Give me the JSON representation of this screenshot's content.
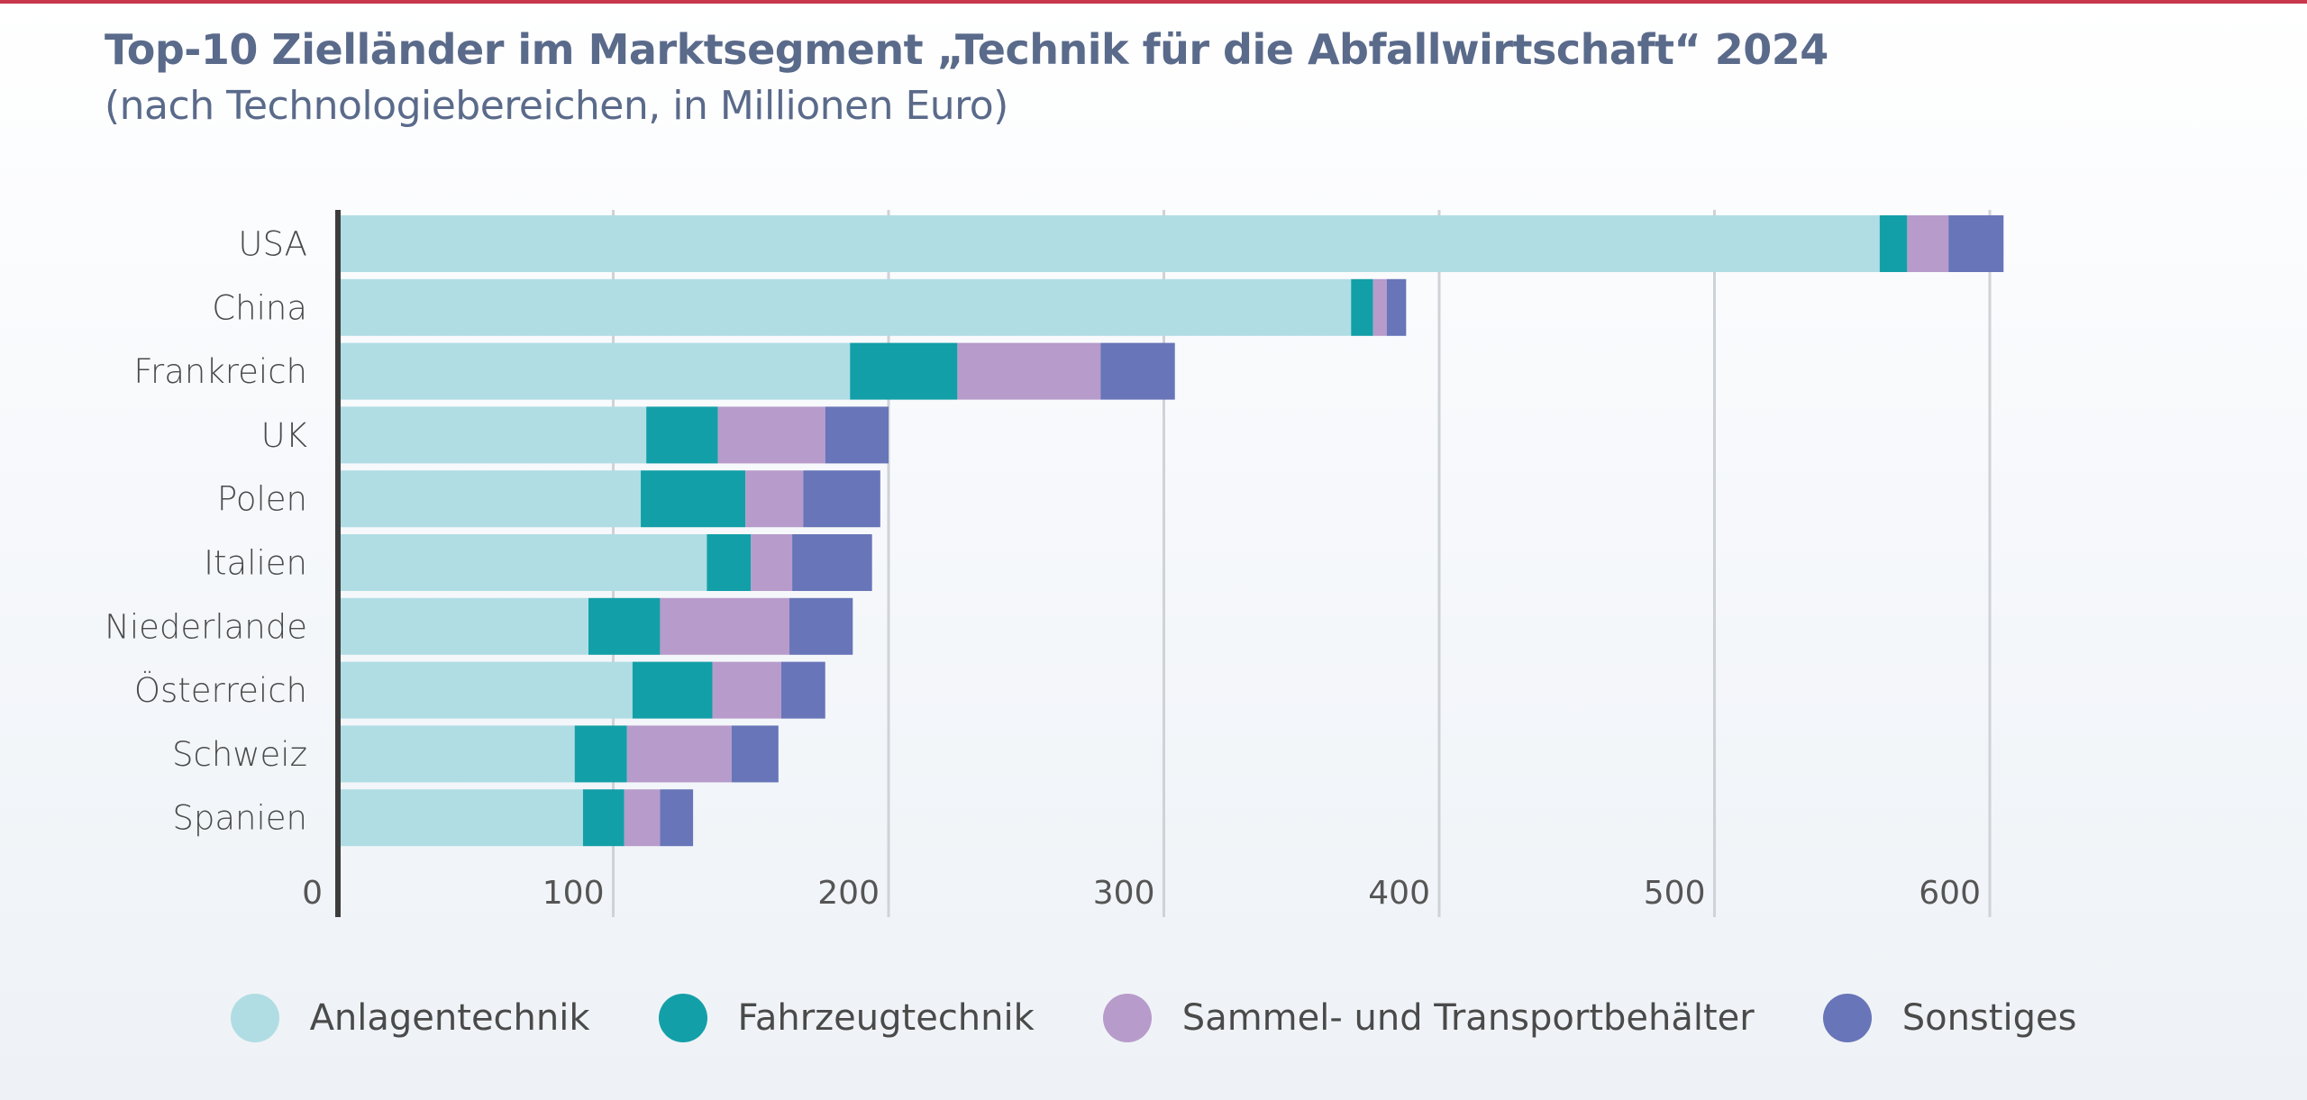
{
  "colors": {
    "topbar": "#c8374c",
    "axis": "#3c3c3c",
    "grid": "#cfd2d6"
  },
  "chart_data": {
    "type": "bar",
    "orientation": "horizontal",
    "stacked": true,
    "title": "Top-10 Zielländer im Marktsegment „Technik für die Abfallwirtschaft“ 2024",
    "subtitle": "(nach Technologiebereichen, in Millionen Euro)",
    "xlabel": "",
    "ylabel": "",
    "xlim": [
      0,
      600
    ],
    "xticks": [
      0,
      100,
      200,
      300,
      400,
      500,
      600
    ],
    "grid": true,
    "legend_position": "bottom",
    "categories": [
      "USA",
      "China",
      "Frankreich",
      "UK",
      "Polen",
      "Italien",
      "Niederlande",
      "Österreich",
      "Schweiz",
      "Spanien"
    ],
    "series": [
      {
        "name": "Anlagentechnik",
        "color": "#b0dde4",
        "values": [
          560,
          368,
          186,
          112,
          110,
          134,
          91,
          107,
          86,
          89
        ]
      },
      {
        "name": "Fahrzeugtechnik",
        "color": "#139fa8",
        "values": [
          10,
          8,
          39,
          26,
          38,
          16,
          26,
          29,
          19,
          15
        ]
      },
      {
        "name": "Sammel- und Transportbehälter",
        "color": "#b79bcb",
        "values": [
          15,
          5,
          52,
          39,
          21,
          15,
          47,
          25,
          38,
          13
        ]
      },
      {
        "name": "Sonstiges",
        "color": "#6875b8",
        "values": [
          20,
          7,
          27,
          23,
          28,
          29,
          23,
          16,
          17,
          12
        ]
      }
    ]
  }
}
